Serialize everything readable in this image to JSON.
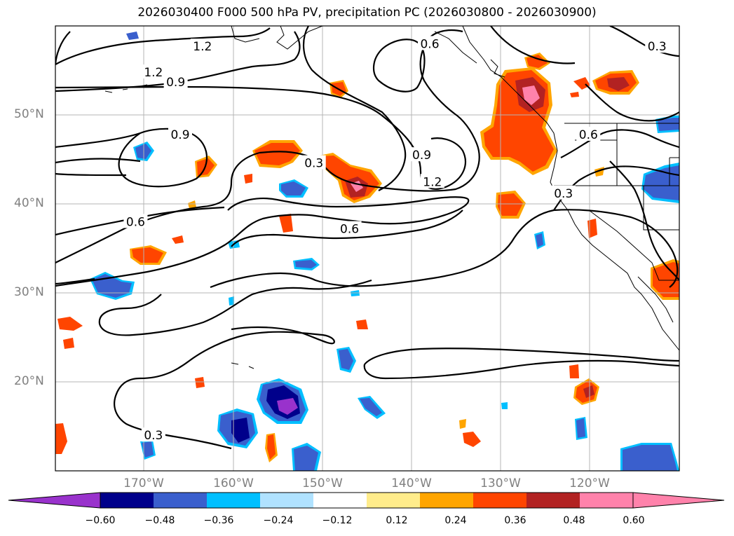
{
  "title": "2026030400 F000 500 hPa PV, precipitation PC (2026030800 - 2026030900)",
  "map": {
    "extent": {
      "lon_min": -180,
      "lon_max": -110,
      "lat_min": 10,
      "lat_max": 60
    },
    "gridlines": true,
    "lat_labels": [
      "50°N",
      "40°N",
      "30°N",
      "20°N"
    ],
    "lat_values": [
      50,
      40,
      30,
      20
    ],
    "lon_labels": [
      "170°W",
      "160°W",
      "150°W",
      "140°W",
      "130°W",
      "120°W"
    ],
    "lon_values": [
      -170,
      -160,
      -150,
      -140,
      -130,
      -120
    ],
    "contour_labels": [
      {
        "text": "1.2",
        "lon": -163.5,
        "lat": 57.7
      },
      {
        "text": "1.2",
        "lon": -169.0,
        "lat": 54.8
      },
      {
        "text": "0.9",
        "lon": -166.5,
        "lat": 53.7
      },
      {
        "text": "0.9",
        "lon": -166.0,
        "lat": 47.8
      },
      {
        "text": "0.6",
        "lon": -171.0,
        "lat": 38.0
      },
      {
        "text": "0.3",
        "lon": -151.0,
        "lat": 44.6
      },
      {
        "text": "0.6",
        "lon": -147.0,
        "lat": 37.2
      },
      {
        "text": "0.6",
        "lon": -138.0,
        "lat": 58.0
      },
      {
        "text": "0.9",
        "lon": -138.9,
        "lat": 45.5
      },
      {
        "text": "1.2",
        "lon": -137.7,
        "lat": 42.5
      },
      {
        "text": "0.6",
        "lon": -120.2,
        "lat": 47.8
      },
      {
        "text": "0.3",
        "lon": -123.0,
        "lat": 41.2
      },
      {
        "text": "0.3",
        "lon": -112.5,
        "lat": 57.7
      },
      {
        "text": "0.3",
        "lon": -169.0,
        "lat": 14.0
      }
    ]
  },
  "colorbar": {
    "tick_labels": [
      "−0.60",
      "−0.48",
      "−0.36",
      "−0.24",
      "−0.12",
      "0.12",
      "0.24",
      "0.36",
      "0.48",
      "0.60"
    ],
    "colors": [
      "#9932cc",
      "#00008b",
      "#3a5fcd",
      "#00bfff",
      "#b0e2ff",
      "#ffffff",
      "#ffec8b",
      "#ffa500",
      "#ff4500",
      "#b22222",
      "#ff82ab",
      "#ff82ab"
    ]
  },
  "palette": {
    "grid": "#b4b4b4",
    "axis_label": "#808080",
    "contour": "#000000",
    "coast": "#000000"
  }
}
